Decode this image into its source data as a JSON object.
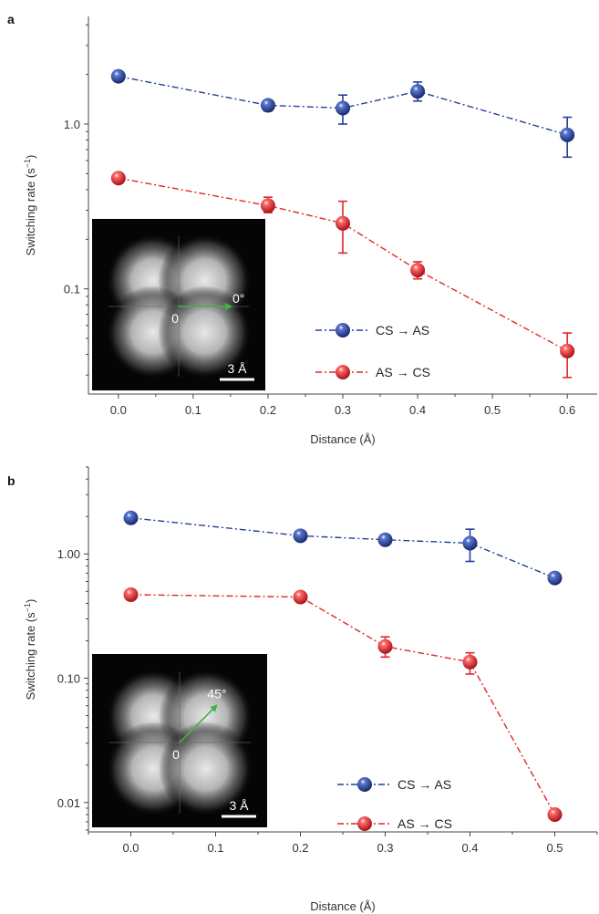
{
  "colors": {
    "blue": "#243f9a",
    "red": "#e1262b",
    "arrow": "#3db34a",
    "axis": "#444444"
  },
  "chart_data": [
    {
      "panel": "a",
      "type": "scatter",
      "xlabel": "Distance (Å)",
      "ylabel": "Switching rate (s",
      "ylabel_sup": "−1",
      "ylabel_close": ")",
      "yscale": "log",
      "xlim": [
        -0.04,
        0.64
      ],
      "ylim": [
        0.023,
        4.5
      ],
      "xticks": [
        0.0,
        0.1,
        0.2,
        0.3,
        0.4,
        0.5,
        0.6
      ],
      "xtick_labels": [
        "0.0",
        "0.1",
        "0.2",
        "0.3",
        "0.4",
        "0.5",
        "0.6"
      ],
      "yticks": [
        1.0,
        0.1
      ],
      "ytick_labels": [
        "1.0",
        "0.1"
      ],
      "series": [
        {
          "name": "CS → AS",
          "color_key": "blue",
          "x": [
            0.0,
            0.2,
            0.3,
            0.4,
            0.6
          ],
          "y": [
            1.95,
            1.3,
            1.25,
            1.58,
            0.86
          ],
          "err_low": [
            1.95,
            1.2,
            1.0,
            1.38,
            0.63
          ],
          "err_high": [
            1.95,
            1.38,
            1.5,
            1.8,
            1.1
          ]
        },
        {
          "name": "AS → CS",
          "color_key": "red",
          "x": [
            0.0,
            0.2,
            0.3,
            0.4,
            0.6
          ],
          "y": [
            0.47,
            0.32,
            0.25,
            0.13,
            0.042
          ],
          "err_low": [
            0.47,
            0.29,
            0.165,
            0.115,
            0.029
          ],
          "err_high": [
            0.47,
            0.36,
            0.34,
            0.146,
            0.054
          ]
        }
      ],
      "inset": {
        "angle_label": "0°",
        "origin_label": "0",
        "scale_label": "3 Å",
        "angle_deg": 0
      }
    },
    {
      "panel": "b",
      "type": "scatter",
      "xlabel": "Distance (Å)",
      "ylabel": "Switching rate (s",
      "ylabel_sup": "−1",
      "ylabel_close": ")",
      "yscale": "log",
      "xlim": [
        -0.05,
        0.55
      ],
      "ylim": [
        0.0058,
        5.0
      ],
      "xticks": [
        0.0,
        0.1,
        0.2,
        0.3,
        0.4,
        0.5
      ],
      "xtick_labels": [
        "0.0",
        "0.1",
        "0.2",
        "0.3",
        "0.4",
        "0.5"
      ],
      "yticks": [
        1.0,
        0.1,
        0.01
      ],
      "ytick_labels": [
        "1.00",
        "0.10",
        "0.01"
      ],
      "series": [
        {
          "name": "CS → AS",
          "color_key": "blue",
          "x": [
            0.0,
            0.2,
            0.3,
            0.4,
            0.5
          ],
          "y": [
            1.95,
            1.4,
            1.3,
            1.22,
            0.64
          ],
          "err_low": [
            1.95,
            1.4,
            1.3,
            0.87,
            0.64
          ],
          "err_high": [
            1.95,
            1.4,
            1.3,
            1.58,
            0.64
          ]
        },
        {
          "name": "AS → CS",
          "color_key": "red",
          "x": [
            0.0,
            0.2,
            0.3,
            0.4,
            0.5
          ],
          "y": [
            0.47,
            0.45,
            0.18,
            0.135,
            0.008
          ],
          "err_low": [
            0.47,
            0.45,
            0.148,
            0.108,
            0.008
          ],
          "err_high": [
            0.47,
            0.45,
            0.215,
            0.16,
            0.008
          ]
        }
      ],
      "inset": {
        "angle_label": "45°",
        "origin_label": "0",
        "scale_label": "3 Å",
        "angle_deg": 45
      }
    }
  ]
}
